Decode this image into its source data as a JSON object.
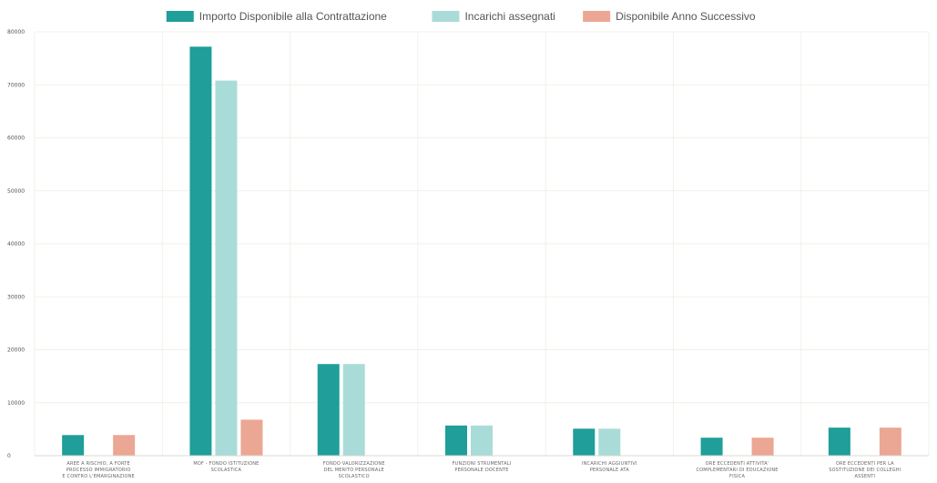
{
  "chart_data": {
    "type": "bar",
    "title": "",
    "xlabel": "",
    "ylabel": "",
    "ylim": [
      0,
      80000
    ],
    "yticks": [
      0,
      10000,
      20000,
      30000,
      40000,
      50000,
      60000,
      70000,
      80000
    ],
    "grid": true,
    "legend_position": "top",
    "categories": [
      [
        "AREE A RISCHIO, A FORTE",
        "PROCESSO IMMIGRATORIO",
        "E CONTRO L'EMARGINAZIONE"
      ],
      [
        "MOF - FONDO ISTITUZIONE",
        "SCOLASTICA"
      ],
      [
        "FONDO VALORIZZAZIONE",
        "DEL MERITO PERSONALE",
        "SCOLASTICO"
      ],
      [
        "FUNZIONI STRUMENTALI",
        "PERSONALE DOCENTE"
      ],
      [
        "INCARICHI AGGIUNTIVI",
        "PERSONALE ATA"
      ],
      [
        "ORE ECCEDENTI ATTIVITA'",
        "COMPLEMENTARI DI EDUCAZIONE",
        "FISICA"
      ],
      [
        "ORE ECCEDENTI PER LA",
        "SOSTITUZIONE DEI COLLEGHI",
        "ASSENTI"
      ]
    ],
    "series": [
      {
        "name": "Importo Disponibile alla Contrattazione",
        "color": "#1f9e9a",
        "values": [
          3900,
          77200,
          17300,
          5700,
          5100,
          3400,
          5300
        ]
      },
      {
        "name": "Incarichi assegnati",
        "color": "#a9dcd8",
        "values": [
          0,
          70800,
          17300,
          5700,
          5100,
          0,
          0
        ]
      },
      {
        "name": "Disponibile Anno Successivo",
        "color": "#eba793",
        "values": [
          3900,
          6800,
          0,
          0,
          0,
          3400,
          5300
        ]
      }
    ]
  }
}
